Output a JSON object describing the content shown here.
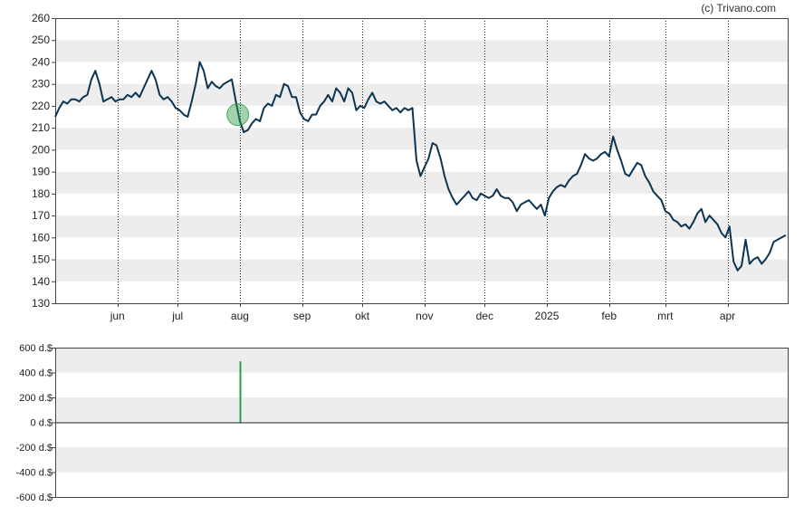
{
  "copyright": "(c) Trivano.com",
  "chart_data": [
    {
      "type": "line",
      "title": "",
      "xlabel": "",
      "ylabel": "",
      "ylim": [
        130,
        260
      ],
      "yticks": [
        130,
        140,
        150,
        160,
        170,
        180,
        190,
        200,
        210,
        220,
        230,
        240,
        250,
        260
      ],
      "grid": true,
      "x_tick_labels": [
        "jun",
        "jul",
        "aug",
        "sep",
        "okt",
        "nov",
        "dec",
        "2025",
        "feb",
        "mrt",
        "apr"
      ],
      "x_tick_days": [
        31,
        61,
        92,
        123,
        153,
        184,
        214,
        245,
        276,
        304,
        335
      ],
      "x_range_days": [
        0,
        365
      ],
      "line_color": "#0d3552",
      "series": [
        {
          "points": [
            [
              0,
              215
            ],
            [
              2,
              219
            ],
            [
              4,
              222
            ],
            [
              6,
              221
            ],
            [
              8,
              223
            ],
            [
              10,
              223
            ],
            [
              12,
              222
            ],
            [
              14,
              224
            ],
            [
              16,
              225
            ],
            [
              18,
              232
            ],
            [
              20,
              236
            ],
            [
              22,
              230
            ],
            [
              24,
              222
            ],
            [
              26,
              223
            ],
            [
              28,
              224
            ],
            [
              30,
              222
            ],
            [
              32,
              223
            ],
            [
              34,
              223
            ],
            [
              36,
              225
            ],
            [
              38,
              224
            ],
            [
              40,
              226
            ],
            [
              42,
              224
            ],
            [
              44,
              228
            ],
            [
              46,
              232
            ],
            [
              48,
              236
            ],
            [
              50,
              232
            ],
            [
              52,
              225
            ],
            [
              54,
              223
            ],
            [
              56,
              224
            ],
            [
              58,
              222
            ],
            [
              60,
              219
            ],
            [
              62,
              218
            ],
            [
              64,
              216
            ],
            [
              66,
              215
            ],
            [
              68,
              222
            ],
            [
              70,
              230
            ],
            [
              72,
              240
            ],
            [
              74,
              236
            ],
            [
              76,
              228
            ],
            [
              78,
              231
            ],
            [
              80,
              229
            ],
            [
              82,
              228
            ],
            [
              84,
              230
            ],
            [
              86,
              231
            ],
            [
              88,
              232
            ],
            [
              90,
              222
            ],
            [
              92,
              213
            ],
            [
              94,
              208
            ],
            [
              96,
              209
            ],
            [
              98,
              212
            ],
            [
              100,
              214
            ],
            [
              102,
              213
            ],
            [
              104,
              219
            ],
            [
              106,
              221
            ],
            [
              108,
              220
            ],
            [
              110,
              225
            ],
            [
              112,
              224
            ],
            [
              114,
              230
            ],
            [
              116,
              229
            ],
            [
              118,
              224
            ],
            [
              120,
              224
            ],
            [
              122,
              217
            ],
            [
              124,
              214
            ],
            [
              126,
              213
            ],
            [
              128,
              216
            ],
            [
              130,
              216
            ],
            [
              132,
              220
            ],
            [
              134,
              222
            ],
            [
              136,
              225
            ],
            [
              138,
              222
            ],
            [
              140,
              228
            ],
            [
              142,
              226
            ],
            [
              144,
              222
            ],
            [
              146,
              228
            ],
            [
              148,
              226
            ],
            [
              150,
              218
            ],
            [
              152,
              220
            ],
            [
              154,
              219
            ],
            [
              156,
              223
            ],
            [
              158,
              226
            ],
            [
              160,
              222
            ],
            [
              162,
              221
            ],
            [
              164,
              222
            ],
            [
              166,
              220
            ],
            [
              168,
              218
            ],
            [
              170,
              219
            ],
            [
              172,
              217
            ],
            [
              174,
              219
            ],
            [
              176,
              218
            ],
            [
              178,
              219
            ],
            [
              180,
              195
            ],
            [
              182,
              188
            ],
            [
              184,
              192
            ],
            [
              186,
              196
            ],
            [
              188,
              203
            ],
            [
              190,
              202
            ],
            [
              192,
              196
            ],
            [
              194,
              188
            ],
            [
              196,
              182
            ],
            [
              198,
              178
            ],
            [
              200,
              175
            ],
            [
              202,
              177
            ],
            [
              204,
              179
            ],
            [
              206,
              181
            ],
            [
              208,
              178
            ],
            [
              210,
              177
            ],
            [
              212,
              180
            ],
            [
              214,
              179
            ],
            [
              216,
              178
            ],
            [
              218,
              179
            ],
            [
              220,
              182
            ],
            [
              222,
              179
            ],
            [
              224,
              178
            ],
            [
              226,
              178
            ],
            [
              228,
              176
            ],
            [
              230,
              172
            ],
            [
              232,
              175
            ],
            [
              234,
              176
            ],
            [
              236,
              177
            ],
            [
              238,
              175
            ],
            [
              240,
              173
            ],
            [
              242,
              175
            ],
            [
              244,
              170
            ],
            [
              246,
              178
            ],
            [
              248,
              181
            ],
            [
              250,
              183
            ],
            [
              252,
              184
            ],
            [
              254,
              183
            ],
            [
              256,
              186
            ],
            [
              258,
              188
            ],
            [
              260,
              189
            ],
            [
              262,
              193
            ],
            [
              264,
              198
            ],
            [
              266,
              196
            ],
            [
              268,
              195
            ],
            [
              270,
              196
            ],
            [
              272,
              198
            ],
            [
              274,
              199
            ],
            [
              276,
              197
            ],
            [
              278,
              206
            ],
            [
              280,
              200
            ],
            [
              282,
              195
            ],
            [
              284,
              189
            ],
            [
              286,
              188
            ],
            [
              288,
              191
            ],
            [
              290,
              194
            ],
            [
              292,
              193
            ],
            [
              294,
              188
            ],
            [
              296,
              185
            ],
            [
              298,
              181
            ],
            [
              300,
              179
            ],
            [
              302,
              177
            ],
            [
              304,
              172
            ],
            [
              306,
              171
            ],
            [
              308,
              168
            ],
            [
              310,
              167
            ],
            [
              312,
              165
            ],
            [
              314,
              166
            ],
            [
              316,
              164
            ],
            [
              318,
              167
            ],
            [
              320,
              171
            ],
            [
              322,
              173
            ],
            [
              324,
              167
            ],
            [
              326,
              170
            ],
            [
              328,
              168
            ],
            [
              330,
              166
            ],
            [
              332,
              162
            ],
            [
              334,
              160
            ],
            [
              336,
              165
            ],
            [
              338,
              149
            ],
            [
              340,
              145
            ],
            [
              342,
              147
            ],
            [
              344,
              159
            ],
            [
              346,
              148
            ],
            [
              348,
              150
            ],
            [
              350,
              151
            ],
            [
              352,
              148
            ],
            [
              354,
              150
            ],
            [
              356,
              153
            ],
            [
              358,
              158
            ],
            [
              360,
              159
            ],
            [
              362,
              160
            ],
            [
              364,
              161
            ]
          ]
        }
      ],
      "marker": {
        "day": 91,
        "value": 216,
        "color": "#2e9c48"
      }
    },
    {
      "type": "bar",
      "title": "",
      "xlabel": "",
      "ylabel": "",
      "ylim": [
        -600,
        600
      ],
      "ytick_labels": [
        "600 d.$",
        "400 d.$",
        "200 d.$",
        "0 d.$",
        "-200 d.$",
        "-400 d.$",
        "-600 d.$"
      ],
      "yticks": [
        600,
        400,
        200,
        0,
        -200,
        -400,
        -600
      ],
      "grid": true,
      "bar_color": "#2e9c48",
      "bars": [
        {
          "day": 92,
          "value": 490
        }
      ]
    }
  ]
}
